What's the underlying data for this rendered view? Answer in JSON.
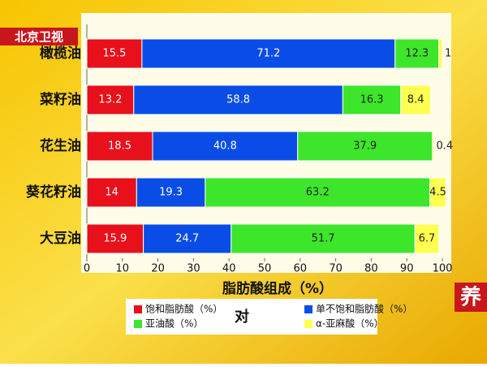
{
  "logo": "北京卫视",
  "caption": "对",
  "badge": "养",
  "chart_data": {
    "type": "stacked-bar-horizontal",
    "x_label": "脂肪酸组成（%）",
    "categories": [
      "橄榄油",
      "菜籽油",
      "花生油",
      "葵花籽油",
      "大豆油"
    ],
    "series": [
      {
        "name": "饱和脂肪酸（%）",
        "color": "#e8101a",
        "values": [
          15.5,
          13.2,
          18.5,
          14,
          15.9
        ]
      },
      {
        "name": "单不饱和脂肪酸（%）",
        "color": "#0a4de6",
        "values": [
          71.2,
          58.8,
          40.8,
          19.3,
          24.7
        ]
      },
      {
        "name": "亚油酸（%）",
        "color": "#3de62a",
        "values": [
          12.3,
          16.3,
          37.9,
          63.2,
          51.7
        ]
      },
      {
        "name": "α-亚麻酸（%）",
        "color": "#ffff50",
        "values": [
          1,
          8.4,
          0.4,
          4.5,
          6.7
        ]
      }
    ],
    "xlim": [
      0,
      100
    ],
    "xticks": [
      0,
      10,
      20,
      30,
      40,
      50,
      60,
      70,
      80,
      90,
      100
    ],
    "grid": false
  }
}
